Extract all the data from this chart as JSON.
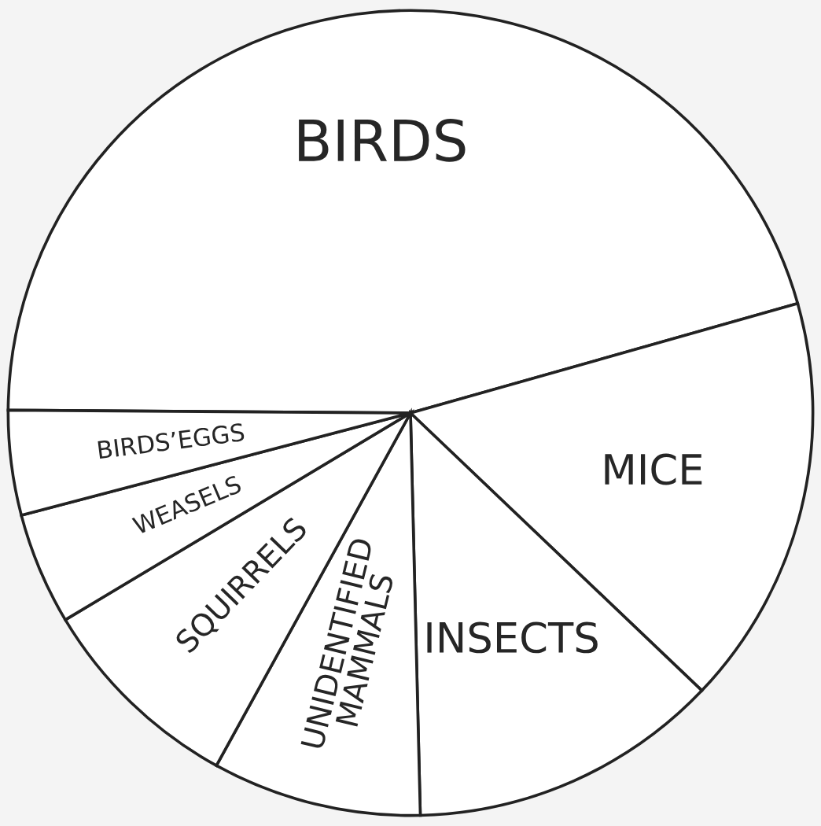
{
  "chart_data": {
    "type": "pie",
    "categories": [
      "BIRDS",
      "MICE",
      "INSECTS",
      "UNIDENTIFIED\nMAMMALS",
      "SQUIRRELS",
      "WEASELS",
      "BIRDS’EGGS"
    ],
    "values": [
      45.5,
      16.5,
      12.5,
      8.4,
      8.4,
      4.5,
      4.2
    ],
    "colors": [
      "#ffffff",
      "#ffffff",
      "#ffffff",
      "#ffffff",
      "#ffffff",
      "#ffffff",
      "#ffffff"
    ]
  }
}
